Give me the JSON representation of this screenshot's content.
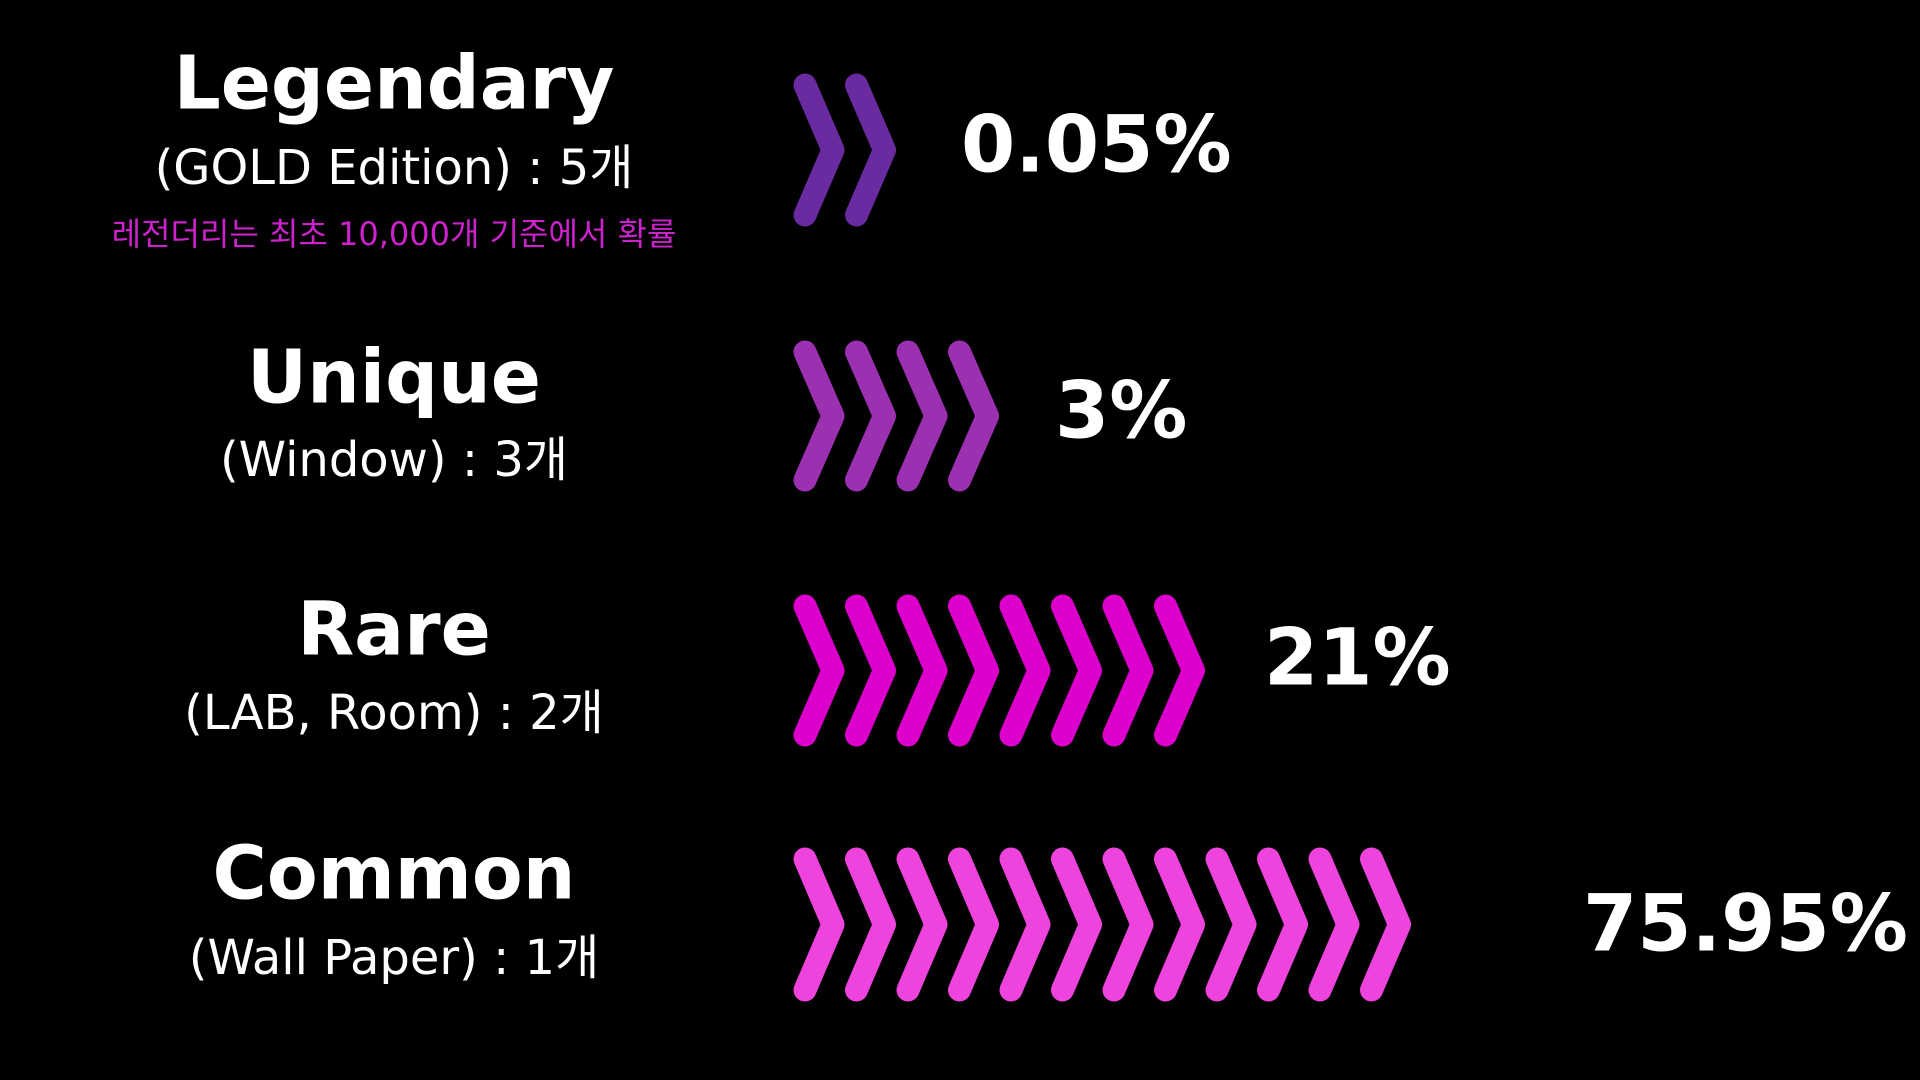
{
  "tiers": [
    {
      "name": "Legendary",
      "description": "(GOLD Edition) : 5개",
      "note": "레전더리는 최초 10,000개 기준에서 확률",
      "probability": "0.05%"
    },
    {
      "name": "Unique",
      "description": "(Window) : 3개",
      "probability": "3%"
    },
    {
      "name": "Rare",
      "description": "(LAB, Room) : 2개",
      "probability": "21%"
    },
    {
      "name": "Common",
      "description": "(Wall Paper) : 1개",
      "probability": "75.95%"
    }
  ]
}
